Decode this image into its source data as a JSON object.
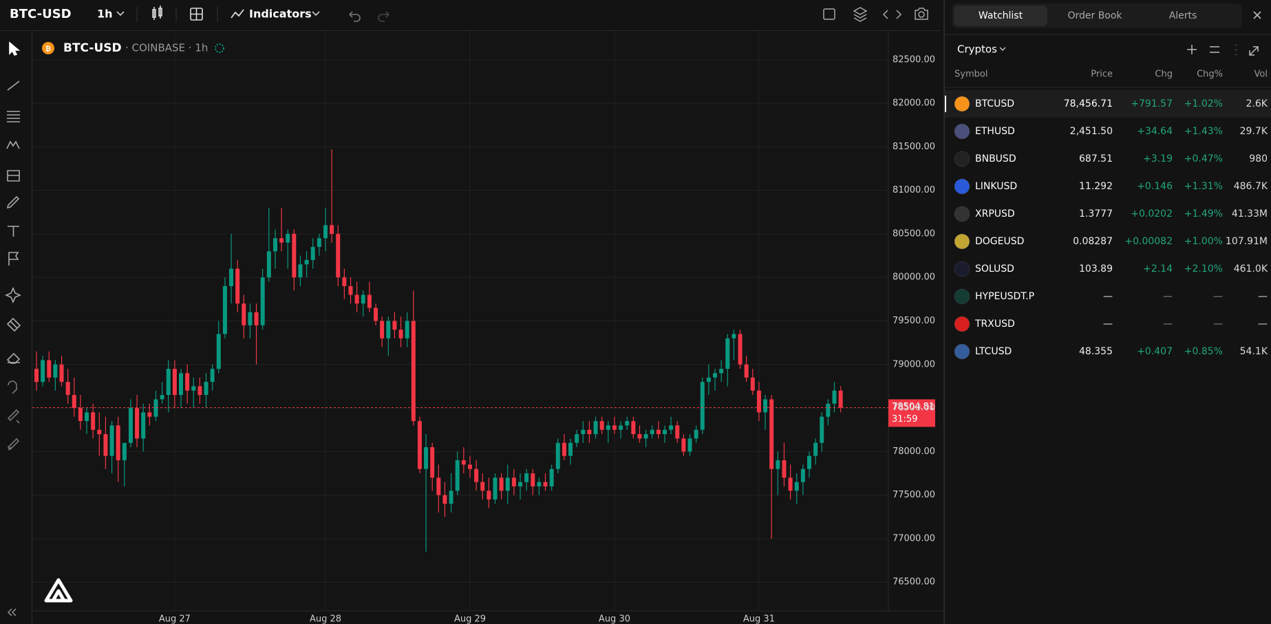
{
  "toolbar": {
    "symbol": "BTC-USD",
    "interval": "1h",
    "indicators": "Indicators"
  },
  "chart_data": {
    "type": "candlestick",
    "title": "BTC-USD",
    "subtitle": "· COINBASE · 1h",
    "up_color": "#089981",
    "down_color": "#f23645",
    "grid": true,
    "categories": [
      null,
      null,
      null,
      null,
      null,
      null,
      null,
      null,
      null,
      null,
      null,
      null,
      null,
      null,
      null,
      null,
      null,
      null,
      null,
      null,
      null,
      null,
      "Aug 27",
      null,
      null,
      null,
      null,
      null,
      null,
      null,
      null,
      null,
      null,
      null,
      null,
      null,
      null,
      null,
      null,
      null,
      null,
      null,
      null,
      null,
      null,
      null,
      "Aug 28",
      null,
      null,
      null,
      null,
      null,
      null,
      null,
      null,
      null,
      null,
      null,
      null,
      null,
      null,
      null,
      null,
      null,
      null,
      null,
      null,
      null,
      null,
      "Aug 29",
      null,
      null,
      null,
      null,
      null,
      null,
      null,
      null,
      null,
      null,
      null,
      null,
      null,
      null,
      null,
      null,
      null,
      null,
      null,
      null,
      null,
      null,
      "Aug 30",
      null,
      null,
      null,
      null,
      null,
      null,
      null,
      null,
      null,
      null,
      null,
      null,
      null,
      null,
      null,
      null,
      null,
      null,
      null,
      null,
      null,
      null,
      "Aug 31",
      null,
      null,
      null,
      null,
      null,
      null,
      null,
      null,
      null,
      null
    ],
    "ohlc": [
      [
        78950,
        79150,
        78700,
        78800
      ],
      [
        78800,
        79100,
        78750,
        79050
      ],
      [
        79050,
        79150,
        78800,
        78850
      ],
      [
        78850,
        79050,
        78700,
        79000
      ],
      [
        79000,
        79100,
        78750,
        78800
      ],
      [
        78800,
        78950,
        78550,
        78650
      ],
      [
        78650,
        78850,
        78400,
        78500
      ],
      [
        78500,
        78650,
        78250,
        78350
      ],
      [
        78350,
        78500,
        78200,
        78450
      ],
      [
        78450,
        78550,
        78150,
        78250
      ],
      [
        78250,
        78450,
        77950,
        78200
      ],
      [
        78200,
        78400,
        77800,
        77950
      ],
      [
        77950,
        78350,
        77750,
        78300
      ],
      [
        78300,
        78400,
        77650,
        77900
      ],
      [
        77900,
        78050,
        77600,
        78100
      ],
      [
        78100,
        78600,
        78050,
        78500
      ],
      [
        78500,
        78650,
        78050,
        78150
      ],
      [
        78150,
        78550,
        78000,
        78450
      ],
      [
        78450,
        78550,
        78300,
        78400
      ],
      [
        78400,
        78700,
        78350,
        78600
      ],
      [
        78600,
        78800,
        78550,
        78650
      ],
      [
        78650,
        79050,
        78450,
        78950
      ],
      [
        78950,
        79050,
        78500,
        78650
      ],
      [
        78650,
        78950,
        78500,
        78900
      ],
      [
        78900,
        79000,
        78550,
        78700
      ],
      [
        78700,
        78850,
        78500,
        78750
      ],
      [
        78750,
        78850,
        78550,
        78650
      ],
      [
        78650,
        78900,
        78500,
        78800
      ],
      [
        78800,
        79000,
        78700,
        78950
      ],
      [
        78950,
        79500,
        78900,
        79350
      ],
      [
        79350,
        80000,
        79300,
        79900
      ],
      [
        79900,
        80500,
        79700,
        80100
      ],
      [
        80100,
        80200,
        79600,
        79700
      ],
      [
        79700,
        79800,
        79300,
        79450
      ],
      [
        79450,
        79700,
        79300,
        79600
      ],
      [
        79600,
        79700,
        79000,
        79450
      ],
      [
        79450,
        80100,
        79400,
        80000
      ],
      [
        80000,
        80800,
        79950,
        80300
      ],
      [
        80300,
        80550,
        80100,
        80450
      ],
      [
        80450,
        80800,
        80300,
        80400
      ],
      [
        80400,
        80550,
        80100,
        80500
      ],
      [
        80500,
        80550,
        79850,
        80000
      ],
      [
        80000,
        80250,
        79900,
        80150
      ],
      [
        80150,
        80300,
        80000,
        80200
      ],
      [
        80200,
        80450,
        80100,
        80350
      ],
      [
        80350,
        80500,
        80250,
        80450
      ],
      [
        80450,
        80800,
        80300,
        80600
      ],
      [
        80600,
        81470,
        80400,
        80500
      ],
      [
        80500,
        80600,
        79900,
        80000
      ],
      [
        80000,
        80100,
        79750,
        79900
      ],
      [
        79900,
        80000,
        79700,
        79800
      ],
      [
        79800,
        79950,
        79600,
        79700
      ],
      [
        79700,
        79850,
        79550,
        79800
      ],
      [
        79800,
        79950,
        79600,
        79650
      ],
      [
        79650,
        79700,
        79450,
        79500
      ],
      [
        79500,
        79550,
        79200,
        79300
      ],
      [
        79300,
        79550,
        79100,
        79500
      ],
      [
        79500,
        79600,
        79300,
        79400
      ],
      [
        79400,
        79550,
        79200,
        79300
      ],
      [
        79300,
        79600,
        79200,
        79500
      ],
      [
        79500,
        79850,
        78300,
        78350
      ],
      [
        78350,
        78400,
        77750,
        77800
      ],
      [
        77800,
        78200,
        76850,
        78050
      ],
      [
        78050,
        78100,
        77550,
        77700
      ],
      [
        77700,
        77850,
        77300,
        77500
      ],
      [
        77500,
        77650,
        77250,
        77400
      ],
      [
        77400,
        77750,
        77300,
        77550
      ],
      [
        77550,
        78000,
        77500,
        77900
      ],
      [
        77900,
        78050,
        77750,
        77850
      ],
      [
        77850,
        77950,
        77700,
        77800
      ],
      [
        77800,
        77900,
        77550,
        77650
      ],
      [
        77650,
        77750,
        77450,
        77550
      ],
      [
        77550,
        77700,
        77350,
        77450
      ],
      [
        77450,
        77750,
        77400,
        77700
      ],
      [
        77700,
        77750,
        77450,
        77550
      ],
      [
        77550,
        77850,
        77400,
        77700
      ],
      [
        77700,
        77800,
        77500,
        77600
      ],
      [
        77600,
        77750,
        77450,
        77650
      ],
      [
        77650,
        77800,
        77550,
        77750
      ],
      [
        77750,
        77800,
        77500,
        77600
      ],
      [
        77600,
        77700,
        77500,
        77650
      ],
      [
        77650,
        77750,
        77550,
        77600
      ],
      [
        77600,
        77850,
        77550,
        77800
      ],
      [
        77800,
        78150,
        77750,
        78100
      ],
      [
        78100,
        78200,
        77900,
        77950
      ],
      [
        77950,
        78150,
        77850,
        78100
      ],
      [
        78100,
        78250,
        78050,
        78200
      ],
      [
        78200,
        78350,
        78100,
        78250
      ],
      [
        78250,
        78350,
        78100,
        78200
      ],
      [
        78200,
        78400,
        78150,
        78350
      ],
      [
        78350,
        78400,
        78200,
        78250
      ],
      [
        78250,
        78350,
        78100,
        78300
      ],
      [
        78300,
        78400,
        78200,
        78250
      ],
      [
        78250,
        78350,
        78150,
        78300
      ],
      [
        78300,
        78400,
        78250,
        78350
      ],
      [
        78350,
        78400,
        78150,
        78200
      ],
      [
        78200,
        78300,
        78100,
        78150
      ],
      [
        78150,
        78250,
        78050,
        78200
      ],
      [
        78200,
        78300,
        78150,
        78250
      ],
      [
        78250,
        78350,
        78150,
        78200
      ],
      [
        78200,
        78300,
        78100,
        78250
      ],
      [
        78250,
        78400,
        78200,
        78300
      ],
      [
        78300,
        78350,
        78100,
        78150
      ],
      [
        78150,
        78200,
        77950,
        78000
      ],
      [
        78000,
        78200,
        77950,
        78150
      ],
      [
        78150,
        78300,
        78100,
        78250
      ],
      [
        78250,
        78850,
        78200,
        78800
      ],
      [
        78800,
        79000,
        78650,
        78850
      ],
      [
        78850,
        78950,
        78700,
        78900
      ],
      [
        78900,
        79050,
        78800,
        78950
      ],
      [
        78950,
        79350,
        78750,
        79300
      ],
      [
        79300,
        79400,
        79050,
        79350
      ],
      [
        79350,
        79400,
        78950,
        79000
      ],
      [
        79000,
        79100,
        78800,
        78850
      ],
      [
        78850,
        78950,
        78650,
        78700
      ],
      [
        78700,
        78800,
        78350,
        78450
      ],
      [
        78450,
        78650,
        78250,
        78600
      ],
      [
        78600,
        78650,
        77000,
        77800
      ],
      [
        77800,
        78000,
        77500,
        77900
      ],
      [
        77900,
        78100,
        77600,
        77700
      ],
      [
        77700,
        77850,
        77450,
        77550
      ],
      [
        77550,
        77750,
        77400,
        77650
      ],
      [
        77650,
        77850,
        77500,
        77800
      ],
      [
        77800,
        78000,
        77700,
        77950
      ],
      [
        77950,
        78150,
        77850,
        78100
      ],
      [
        78100,
        78450,
        78000,
        78400
      ],
      [
        78400,
        78600,
        78300,
        78550
      ],
      [
        78550,
        78800,
        78450,
        78700
      ],
      [
        78700,
        78750,
        78450,
        78504.81
      ]
    ],
    "ylim": [
      76170,
      82830
    ],
    "yticks": [
      {
        "value": 76500,
        "label": "76500.00"
      },
      {
        "value": 77000,
        "label": "77000.00"
      },
      {
        "value": 77500,
        "label": "77500.00"
      },
      {
        "value": 78000,
        "label": "78000.00"
      },
      {
        "value": 78500,
        "label": "78500.00"
      },
      {
        "value": 79000,
        "label": "79000.00"
      },
      {
        "value": 79500,
        "label": "79500.00"
      },
      {
        "value": 80000,
        "label": "80000.00"
      },
      {
        "value": 80500,
        "label": "80500.00"
      },
      {
        "value": 81000,
        "label": "81000.00"
      },
      {
        "value": 81500,
        "label": "81500.00"
      },
      {
        "value": 82000,
        "label": "82000.00"
      },
      {
        "value": 82500,
        "label": "82500.00"
      }
    ],
    "last_price": 78504.81,
    "countdown": "31:59"
  },
  "panel": {
    "tabs": [
      "Watchlist",
      "Order Book",
      "Alerts"
    ],
    "list": "Cryptos",
    "columns": [
      "Symbol",
      "Price",
      "Chg",
      "Chg%",
      "Vol"
    ],
    "rows": [
      [
        "BTCUSD",
        "78,456.71",
        "+791.57",
        "+1.02%",
        "2.6K"
      ],
      [
        "ETHUSD",
        "2,451.50",
        "+34.64",
        "+1.43%",
        "29.7K"
      ],
      [
        "BNBUSD",
        "687.51",
        "+3.19",
        "+0.47%",
        "980"
      ],
      [
        "LINKUSD",
        "11.292",
        "+0.146",
        "+1.31%",
        "486.7K"
      ],
      [
        "XRPUSD",
        "1.3777",
        "+0.0202",
        "+1.49%",
        "41.33M"
      ],
      [
        "DOGEUSD",
        "0.08287",
        "+0.00082",
        "+1.00%",
        "107.91M"
      ],
      [
        "SOLUSD",
        "103.89",
        "+2.14",
        "+2.10%",
        "461.0K"
      ],
      [
        "HYPEUSDT.P",
        "—",
        "—",
        "—",
        "—"
      ],
      [
        "TRXUSD",
        "—",
        "—",
        "—",
        "—"
      ],
      [
        "LTCUSD",
        "48.355",
        "+0.407",
        "+0.85%",
        "54.1K"
      ]
    ]
  }
}
